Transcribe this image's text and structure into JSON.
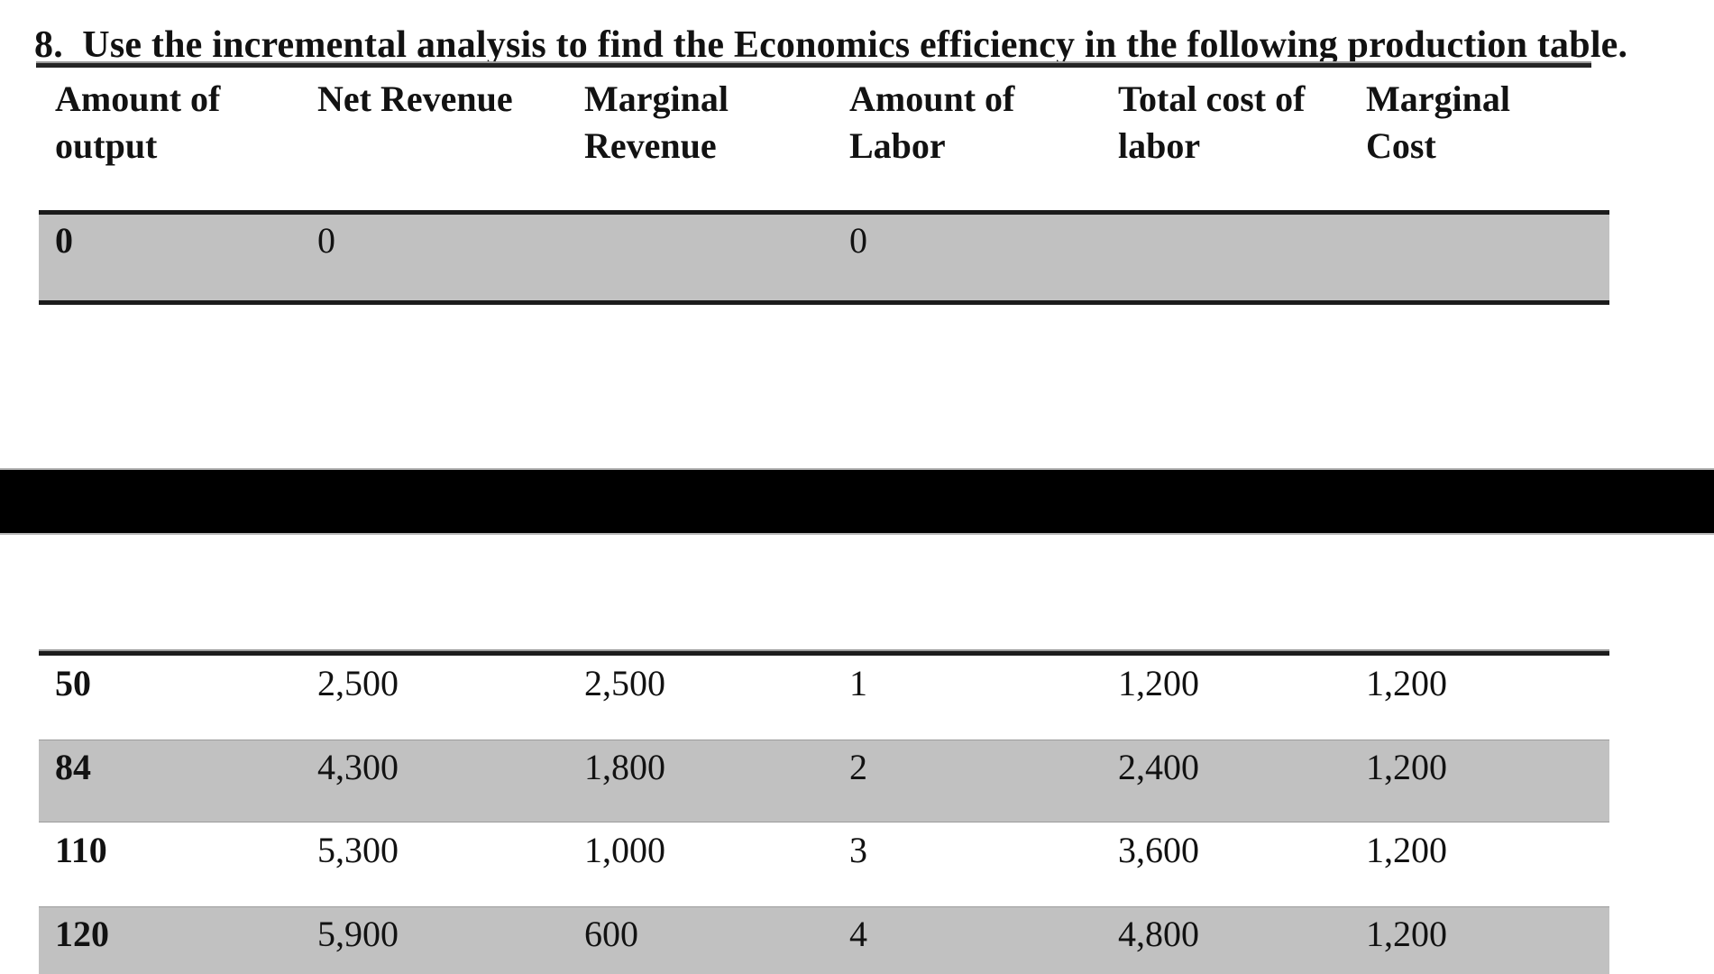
{
  "title": {
    "text": "8.  Use the incremental analysis to find the Economics efficiency in the following production table."
  },
  "table": {
    "headers": [
      "Amount of\noutput",
      "Net Revenue",
      "Marginal\nRevenue",
      "Amount of\nLabor",
      "Total cost of\nlabor",
      "Marginal\nCost"
    ],
    "first_section": {
      "rows": [
        {
          "cells": [
            "0",
            "0",
            "",
            "0",
            "",
            ""
          ]
        }
      ]
    },
    "second_section": {
      "rows": [
        {
          "cells": [
            "50",
            "2,500",
            "2,500",
            "1",
            "1,200",
            "1,200"
          ]
        },
        {
          "cells": [
            "84",
            "4,300",
            "1,800",
            "2",
            "2,400",
            "1,200"
          ]
        },
        {
          "cells": [
            "110",
            "5,300",
            "1,000",
            "3",
            "3,600",
            "1,200"
          ]
        },
        {
          "cells": [
            "120",
            "5,900",
            "600",
            "4",
            "4,800",
            "1,200"
          ]
        }
      ]
    }
  },
  "colors": {
    "row_shade": "#c1c1c1",
    "redaction_bar": "#000000",
    "rule": "#1c1c1c",
    "text": "#121212"
  }
}
